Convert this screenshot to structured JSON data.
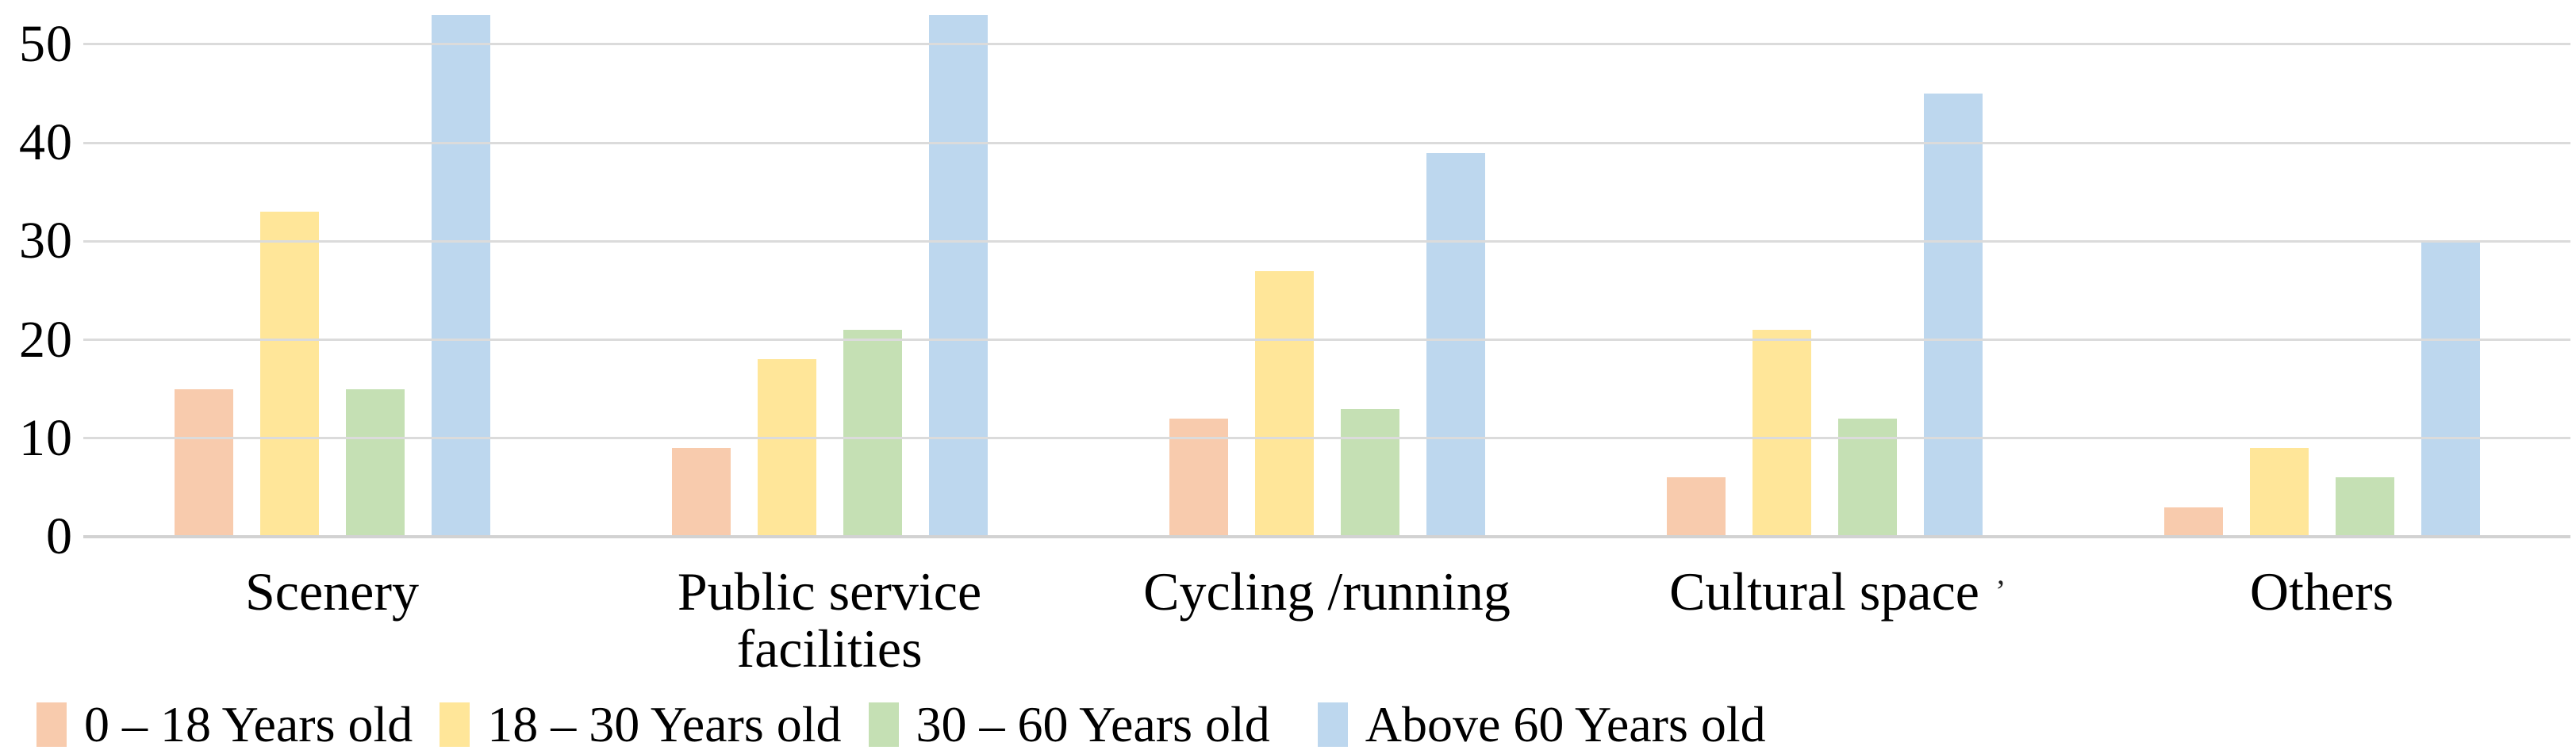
{
  "chart_data": {
    "type": "bar",
    "title": "",
    "xlabel": "",
    "ylabel": "",
    "categories": [
      "Scenery",
      "Public service facilities",
      "Cycling /running",
      "Cultural space",
      "Others"
    ],
    "series": [
      {
        "name": "0 – 18 Years old",
        "color": "#F8CBAD",
        "values": [
          15,
          9,
          12,
          6,
          3
        ]
      },
      {
        "name": "18 – 30 Years old",
        "color": "#FFE699",
        "values": [
          33,
          18,
          27,
          21,
          9
        ]
      },
      {
        "name": "30 – 60 Years old",
        "color": "#C5E0B4",
        "values": [
          15,
          21,
          13,
          12,
          6
        ]
      },
      {
        "name": "Above 60 Years old",
        "color": "#BDD7EE",
        "values": [
          53,
          53,
          39,
          45,
          30
        ]
      }
    ],
    "y_ticks": [
      0,
      10,
      20,
      30,
      40,
      50
    ],
    "ylim": [
      0,
      54.5
    ],
    "grid": true,
    "legend_position": "bottom"
  },
  "annotations": {
    "stray_mark": "’"
  },
  "style_colors": {
    "gridline": "#dbdbdb",
    "axis_line": "#d2d2d2",
    "background": "#ffffff",
    "text": "#000000"
  }
}
